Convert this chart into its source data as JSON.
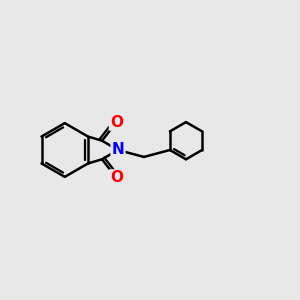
{
  "bg_color": "#e8e8e8",
  "bond_color": "#000000",
  "N_color": "#0000ff",
  "O_color": "#ff0000",
  "bond_width": 1.8,
  "font_size_atom": 11,
  "xlim": [
    -2.5,
    3.2
  ],
  "ylim": [
    -1.6,
    1.6
  ]
}
